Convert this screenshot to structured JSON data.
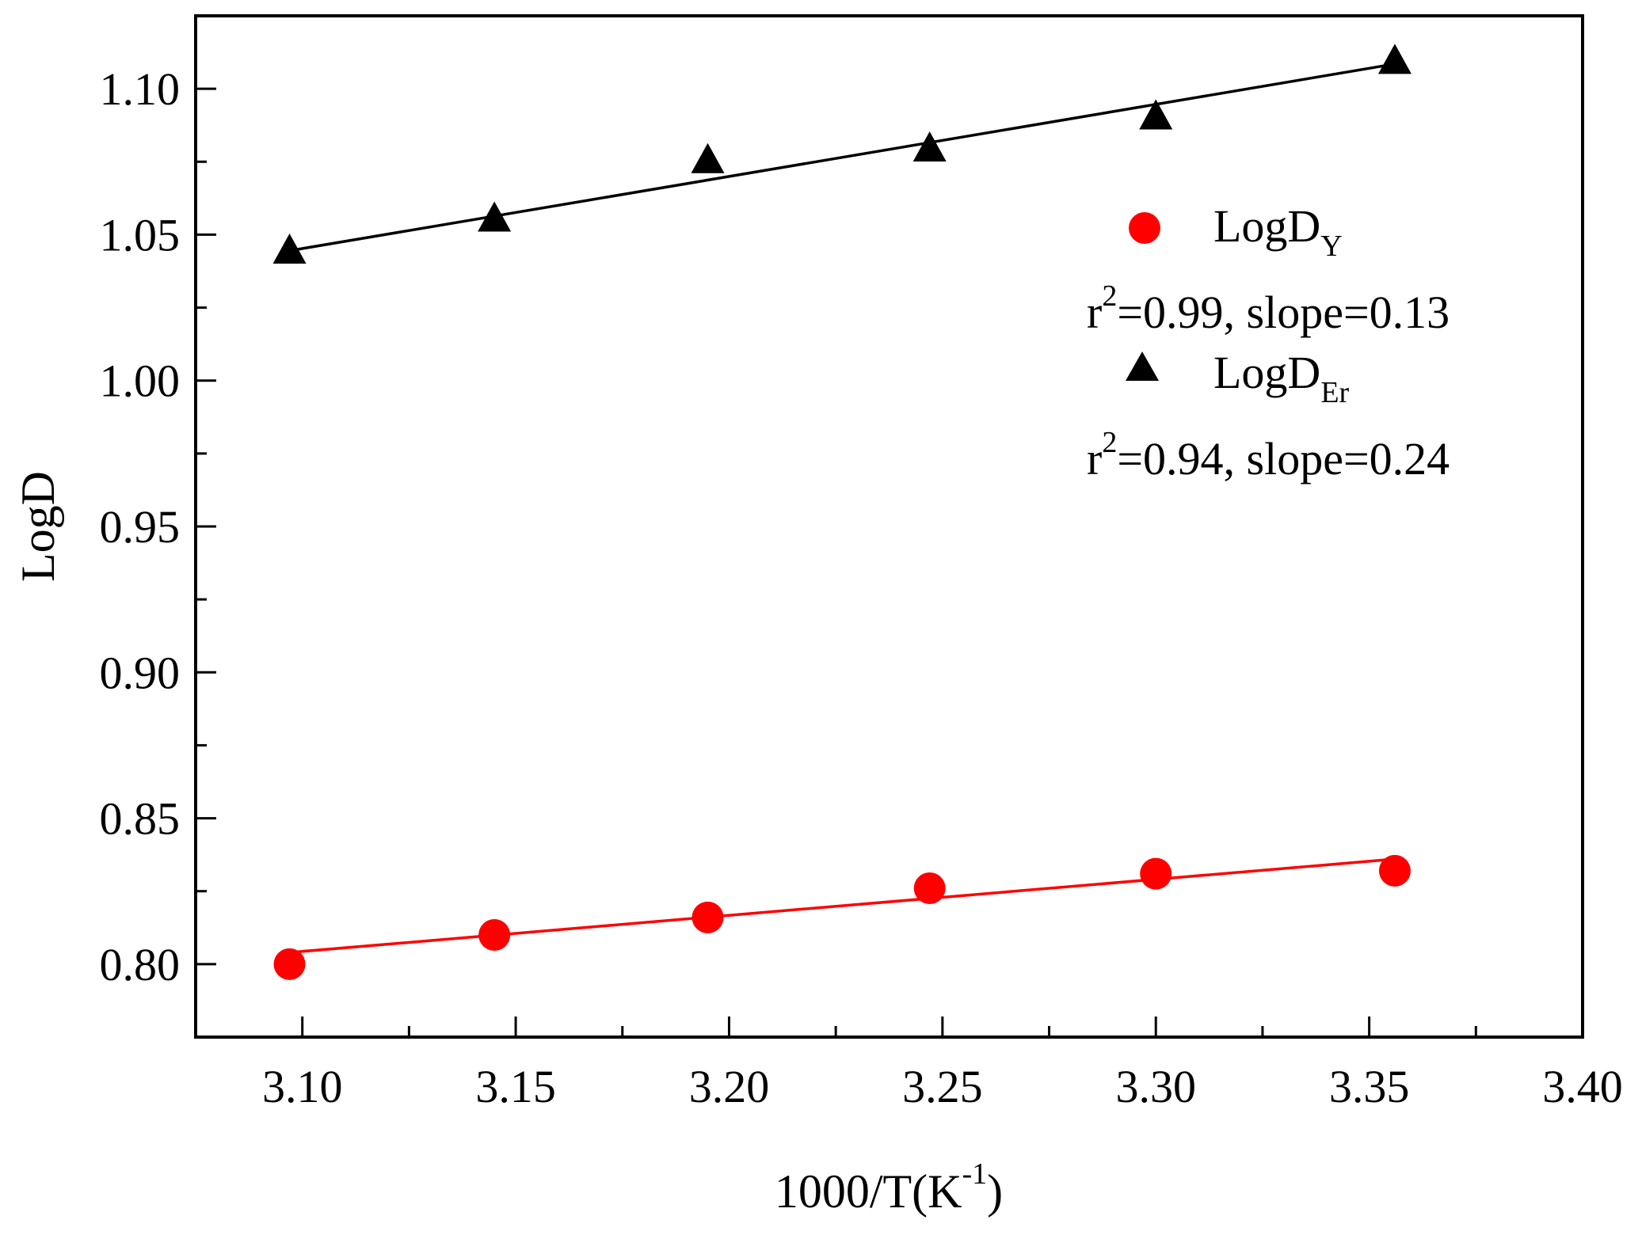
{
  "chart_data": {
    "type": "scatter",
    "title": "",
    "xlabel": "1000/T(K",
    "xlabel_sup": "-1",
    "xlabel_close": ")",
    "ylabel": "LogD",
    "xlim": [
      3.075,
      3.4
    ],
    "ylim": [
      0.775,
      1.125
    ],
    "xticks": [
      3.1,
      3.15,
      3.2,
      3.25,
      3.3,
      3.35,
      3.4
    ],
    "xtick_labels": [
      "3.10",
      "3.15",
      "3.20",
      "3.25",
      "3.30",
      "3.35",
      "3.40"
    ],
    "yticks": [
      0.8,
      0.85,
      0.9,
      0.95,
      1.0,
      1.05,
      1.1
    ],
    "ytick_labels": [
      "0.80",
      "0.85",
      "0.90",
      "0.95",
      "1.00",
      "1.05",
      "1.10"
    ],
    "grid": false,
    "legend_position": "top-right",
    "series": [
      {
        "name": "LogD",
        "subscript": "Y",
        "marker": "circle",
        "color": "#ff0000",
        "x": [
          3.097,
          3.145,
          3.195,
          3.247,
          3.3,
          3.356
        ],
        "y": [
          0.8,
          0.81,
          0.816,
          0.826,
          0.831,
          0.832
        ],
        "fit": {
          "x": [
            3.097,
            3.356
          ],
          "y": [
            0.804,
            0.836
          ]
        },
        "annotation_prefix": "r",
        "annotation_sup": "2",
        "annotation_rest": "=0.99, slope=0.13"
      },
      {
        "name": "LogD",
        "subscript": "Er",
        "marker": "triangle",
        "color": "#000000",
        "x": [
          3.097,
          3.145,
          3.195,
          3.247,
          3.3,
          3.356
        ],
        "y": [
          1.044,
          1.055,
          1.075,
          1.079,
          1.09,
          1.109
        ],
        "fit": {
          "x": [
            3.097,
            3.356
          ],
          "y": [
            1.0445,
            1.1085
          ]
        },
        "annotation_prefix": "r",
        "annotation_sup": "2",
        "annotation_rest": "=0.94, slope=0.24"
      }
    ]
  }
}
